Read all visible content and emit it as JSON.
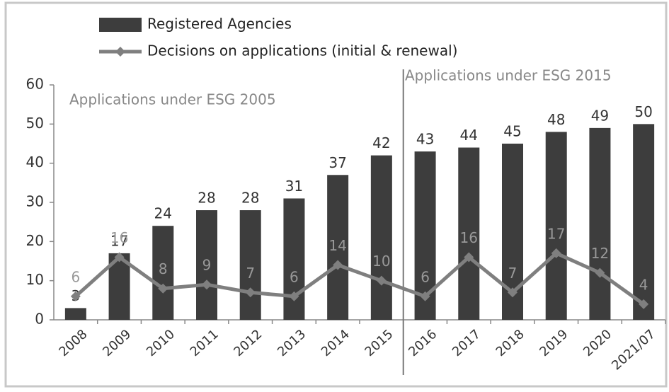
{
  "chart_data": {
    "type": "bar",
    "categories": [
      "2008",
      "2009",
      "2010",
      "2011",
      "2012",
      "2013",
      "2014",
      "2015",
      "2016",
      "2017",
      "2018",
      "2019",
      "2020",
      "2021/07"
    ],
    "series": [
      {
        "name": "Registered Agencies",
        "type": "bar",
        "color": "#3d3d3d",
        "values": [
          3,
          17,
          24,
          28,
          28,
          31,
          37,
          42,
          43,
          44,
          45,
          48,
          49,
          50
        ]
      },
      {
        "name": "Decisions on applications (initial & renewal)",
        "type": "line",
        "color": "#7f7f7f",
        "values": [
          6,
          16,
          8,
          9,
          7,
          6,
          14,
          10,
          6,
          16,
          7,
          17,
          12,
          4
        ]
      }
    ],
    "annotations": [
      "Applications under ESG 2005",
      "Applications under ESG 2015"
    ],
    "ylim": [
      0,
      60
    ],
    "yticks": [
      0,
      10,
      20,
      30,
      40,
      50,
      60
    ],
    "grid": false
  }
}
